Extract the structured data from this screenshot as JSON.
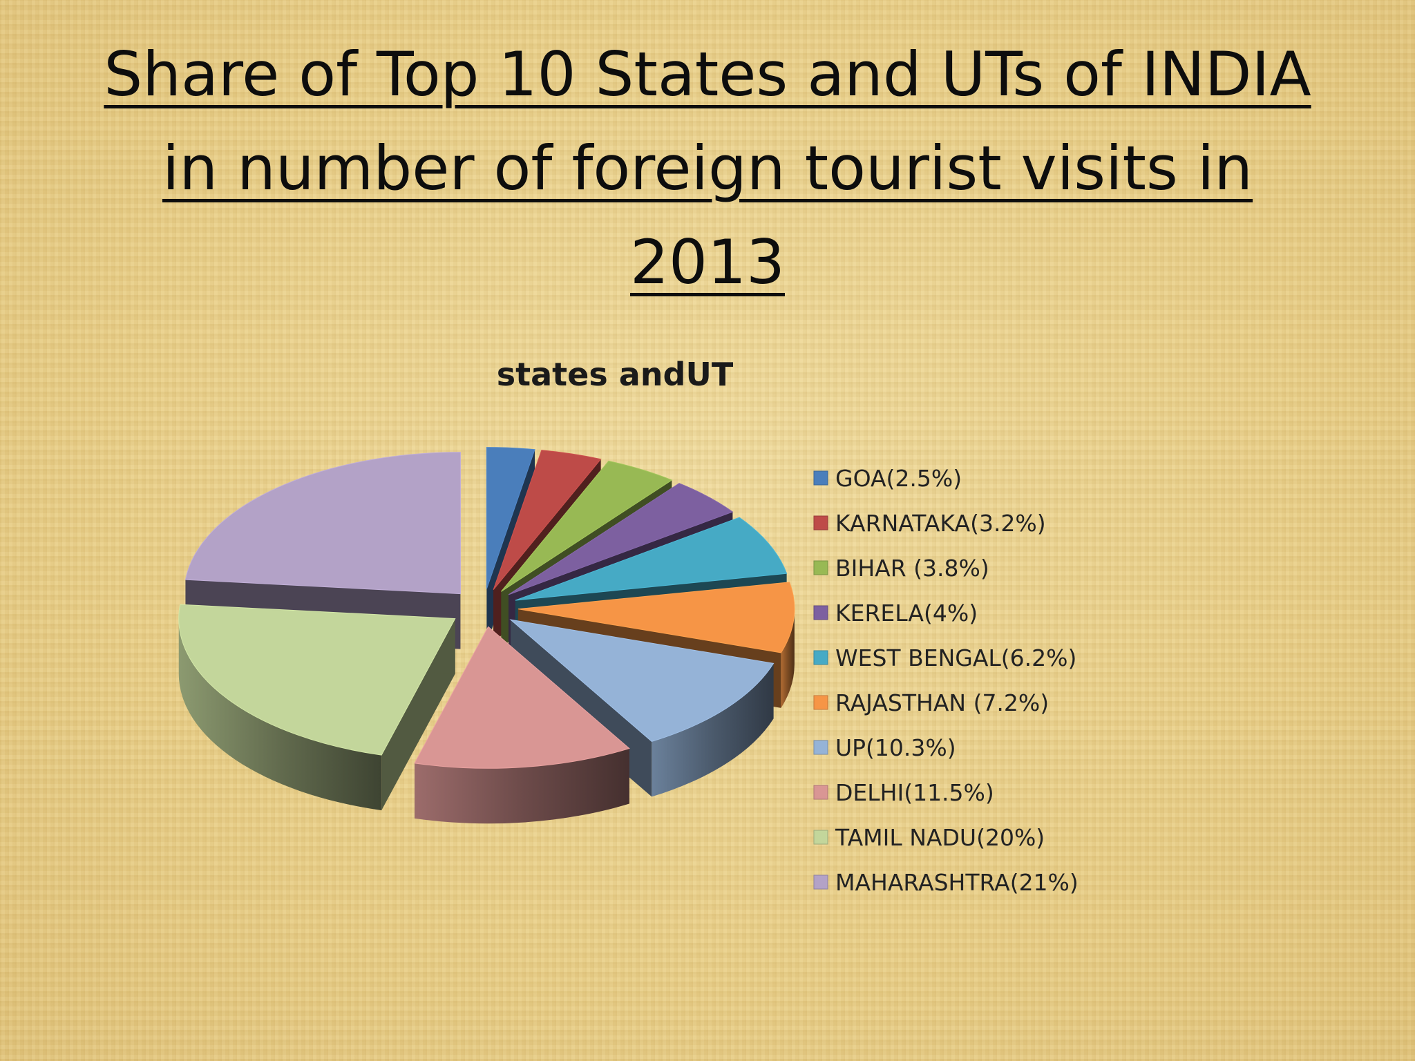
{
  "slide": {
    "title": "Share of Top 10 States and UTs of INDIA in number of foreign tourist visits in 2013"
  },
  "chart_data": {
    "type": "pie",
    "style": "3d-exploded",
    "title": "states andUT",
    "legend_position": "right",
    "labels": [
      "GOA(2.5%)",
      "KARNATAKA(3.2%)",
      "BIHAR (3.8%)",
      "KERELA(4%)",
      "WEST BENGAL(6.2%)",
      "RAJASTHAN (7.2%)",
      "UP(10.3%)",
      "DELHI(11.5%)",
      "TAMIL NADU(20%)",
      "MAHARASHTRA(21%)"
    ],
    "values": [
      2.5,
      3.2,
      3.8,
      4,
      6.2,
      7.2,
      10.3,
      11.5,
      20,
      21
    ],
    "colors": [
      "#4a7ebb",
      "#be4b48",
      "#98b954",
      "#7d60a0",
      "#46aac5",
      "#f69546",
      "#95b3d7",
      "#d99694",
      "#c3d69b",
      "#b3a2c7"
    ]
  }
}
